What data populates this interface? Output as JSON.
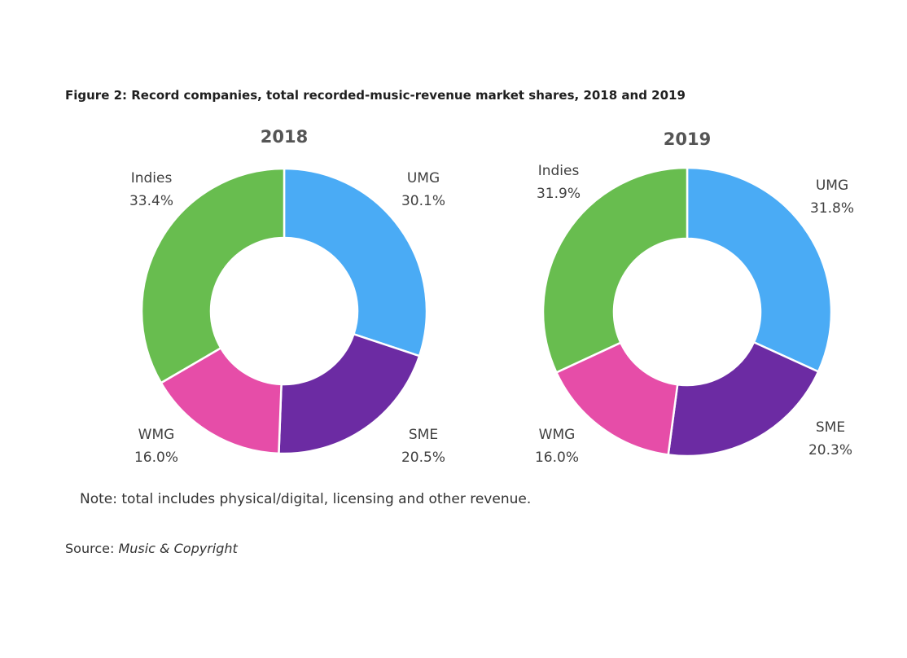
{
  "figure": {
    "title": "Figure 2: Record companies, total recorded-music-revenue market shares, 2018 and 2019",
    "note": "Note: total includes physical/digital, licensing and other revenue.",
    "source_label": "Source:",
    "source_name": "Music & Copyright"
  },
  "colors": {
    "UMG": "#4aabf5",
    "SME": "#6c2ba3",
    "WMG": "#e64da8",
    "Indies": "#68bd4f"
  },
  "chart_data": [
    {
      "type": "pie",
      "title": "2018",
      "categories": [
        "UMG",
        "SME",
        "WMG",
        "Indies"
      ],
      "values": [
        30.1,
        20.5,
        16.0,
        33.4
      ],
      "labels": [
        "30.1%",
        "20.5%",
        "16.0%",
        "33.4%"
      ]
    },
    {
      "type": "pie",
      "title": "2019",
      "categories": [
        "UMG",
        "SME",
        "WMG",
        "Indies"
      ],
      "values": [
        31.8,
        20.3,
        16.0,
        31.9
      ],
      "labels": [
        "31.8%",
        "20.3%",
        "16.0%",
        "31.9%"
      ]
    }
  ]
}
